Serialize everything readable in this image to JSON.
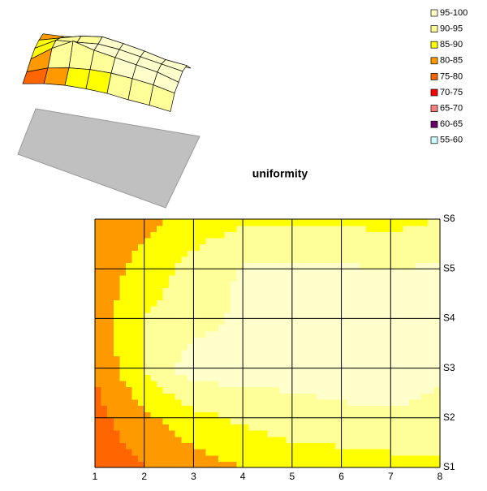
{
  "chart_data": {
    "type": "contour",
    "title": "uniformity",
    "x": [
      1,
      2,
      3,
      4,
      5,
      6,
      7,
      8
    ],
    "xlim": [
      1,
      8
    ],
    "xticks": [
      1,
      2,
      3,
      4,
      5,
      6,
      7,
      8
    ],
    "series": [
      {
        "name": "S1",
        "values": [
          76,
          80,
          83,
          85,
          86.5,
          87,
          88,
          88.5
        ]
      },
      {
        "name": "S2",
        "values": [
          78,
          84,
          88,
          91,
          93,
          94,
          94.5,
          94
        ]
      },
      {
        "name": "S3",
        "values": [
          80.5,
          90.2,
          98,
          97,
          97,
          97,
          97,
          95.5
        ]
      },
      {
        "name": "S4",
        "values": [
          82,
          90.2,
          93,
          96,
          97,
          97,
          97,
          97
        ]
      },
      {
        "name": "S5",
        "values": [
          82,
          87,
          92,
          95.5,
          95.8,
          95.7,
          95,
          95.8
        ]
      },
      {
        "name": "S6",
        "values": [
          81,
          83.5,
          87,
          89,
          89.5,
          89,
          88.5,
          90
        ]
      }
    ],
    "bands": [
      {
        "label": "95-100",
        "min": 95,
        "max": 100,
        "color": "#ffffcc"
      },
      {
        "label": "90-95",
        "min": 90,
        "max": 95,
        "color": "#ffff99"
      },
      {
        "label": "85-90",
        "min": 85,
        "max": 90,
        "color": "#ffff00"
      },
      {
        "label": "80-85",
        "min": 80,
        "max": 85,
        "color": "#ff9900"
      },
      {
        "label": "75-80",
        "min": 75,
        "max": 80,
        "color": "#ff6600"
      },
      {
        "label": "70-75",
        "min": 70,
        "max": 75,
        "color": "#ff0000"
      },
      {
        "label": "65-70",
        "min": 65,
        "max": 70,
        "color": "#ff8080"
      },
      {
        "label": "60-65",
        "min": 60,
        "max": 65,
        "color": "#660066"
      },
      {
        "label": "55-60",
        "min": 55,
        "max": 60,
        "color": "#ccffff"
      }
    ]
  }
}
